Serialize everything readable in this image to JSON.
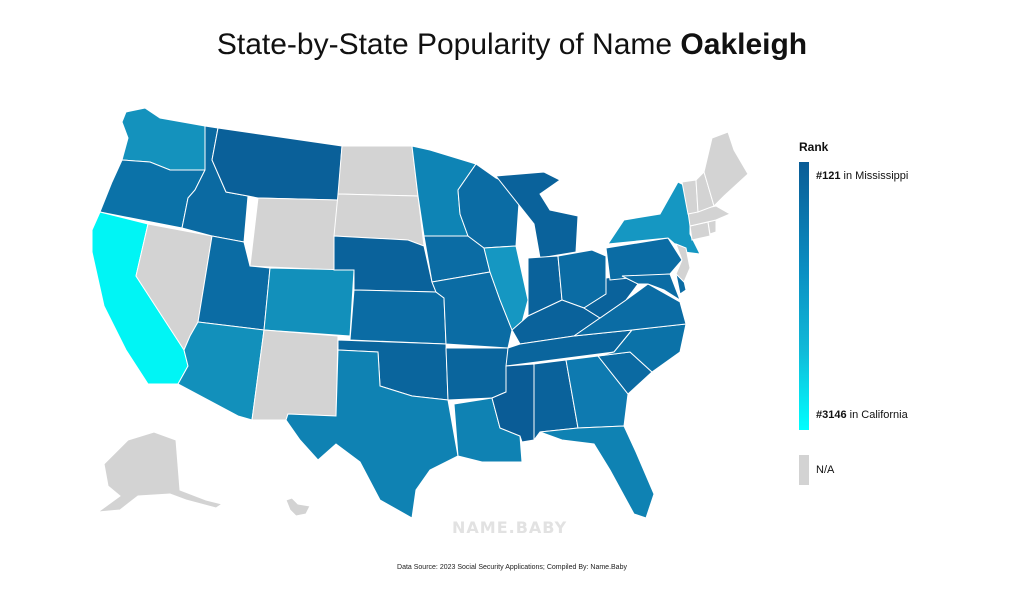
{
  "title": {
    "prefix": "State-by-State Popularity of Name ",
    "name": "Oakleigh"
  },
  "legend": {
    "title": "Rank",
    "top": {
      "rank": "#121",
      "suffix": " in Mississippi"
    },
    "bottom": {
      "rank": "#3146",
      "suffix": " in California"
    },
    "na_label": "N/A",
    "colors": {
      "high": "#0a5c96",
      "mid": "#0a8ec2",
      "low": "#00ffff",
      "na": "#d3d3d3"
    }
  },
  "watermark": "NAME.BABY",
  "source": "Data Source: 2023 Social Security Applications; Compiled By: Name.Baby",
  "map_data": {
    "states": [
      {
        "id": "WA",
        "color": "#1492bd"
      },
      {
        "id": "OR",
        "color": "#0b72a8"
      },
      {
        "id": "CA",
        "color": "#00f5f5"
      },
      {
        "id": "NV",
        "color": "#d3d3d3"
      },
      {
        "id": "ID",
        "color": "#0b6aa2"
      },
      {
        "id": "MT",
        "color": "#0a6099"
      },
      {
        "id": "WY",
        "color": "#d3d3d3"
      },
      {
        "id": "UT",
        "color": "#0b6ca4"
      },
      {
        "id": "AZ",
        "color": "#1290bb"
      },
      {
        "id": "CO",
        "color": "#1290bb"
      },
      {
        "id": "NM",
        "color": "#d3d3d3"
      },
      {
        "id": "ND",
        "color": "#d3d3d3"
      },
      {
        "id": "SD",
        "color": "#d3d3d3"
      },
      {
        "id": "NE",
        "color": "#0a629b"
      },
      {
        "id": "KS",
        "color": "#0b6ca4"
      },
      {
        "id": "OK",
        "color": "#0a659d"
      },
      {
        "id": "TX",
        "color": "#0f82b3"
      },
      {
        "id": "MN",
        "color": "#0e84b5"
      },
      {
        "id": "IA",
        "color": "#0b6ca4"
      },
      {
        "id": "MO",
        "color": "#0b6ca4"
      },
      {
        "id": "AR",
        "color": "#0a659d"
      },
      {
        "id": "LA",
        "color": "#0f82b3"
      },
      {
        "id": "WI",
        "color": "#0b6ca4"
      },
      {
        "id": "IL",
        "color": "#1597c2"
      },
      {
        "id": "MI",
        "color": "#0a629b"
      },
      {
        "id": "IN",
        "color": "#0a629b"
      },
      {
        "id": "OH",
        "color": "#0b6ca4"
      },
      {
        "id": "KY",
        "color": "#0a629b"
      },
      {
        "id": "TN",
        "color": "#0a659d"
      },
      {
        "id": "MS",
        "color": "#0a5c96"
      },
      {
        "id": "AL",
        "color": "#0a629b"
      },
      {
        "id": "GA",
        "color": "#0e7ab0"
      },
      {
        "id": "FL",
        "color": "#0f82b3"
      },
      {
        "id": "SC",
        "color": "#0b6aa2"
      },
      {
        "id": "NC",
        "color": "#0b72a8"
      },
      {
        "id": "VA",
        "color": "#0b6ca4"
      },
      {
        "id": "WV",
        "color": "#0a629b"
      },
      {
        "id": "PA",
        "color": "#0b6ca4"
      },
      {
        "id": "NY",
        "color": "#1597c2"
      },
      {
        "id": "MD",
        "color": "#0b6ca4"
      },
      {
        "id": "DE",
        "color": "#0b6ca4"
      },
      {
        "id": "NJ",
        "color": "#d3d3d3"
      },
      {
        "id": "CT",
        "color": "#d3d3d3"
      },
      {
        "id": "RI",
        "color": "#d3d3d3"
      },
      {
        "id": "MA",
        "color": "#d3d3d3"
      },
      {
        "id": "VT",
        "color": "#d3d3d3"
      },
      {
        "id": "NH",
        "color": "#d3d3d3"
      },
      {
        "id": "ME",
        "color": "#d3d3d3"
      },
      {
        "id": "AK",
        "color": "#d3d3d3"
      },
      {
        "id": "HI",
        "color": "#d3d3d3"
      }
    ]
  }
}
